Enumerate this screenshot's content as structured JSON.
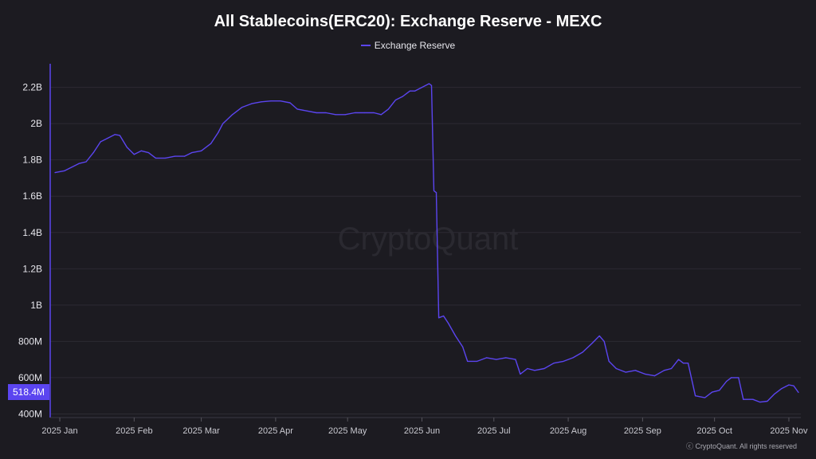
{
  "watermark": "CryptoQuant",
  "copyright": "ⓒ CryptoQuant. All rights reserved",
  "current_value_label": "518.4M",
  "colors": {
    "line": "#5b45f0",
    "badge": "#5b45f0",
    "background": "#1c1b21",
    "grid": "#2c2b33"
  },
  "chart_data": {
    "type": "line",
    "title": "All Stablecoins(ERC20): Exchange Reserve - MEXC",
    "xlabel": "",
    "ylabel": "",
    "legend": "top-center",
    "grid": true,
    "ylim": [
      380000000,
      2330000000
    ],
    "xlim": [
      "2024-12-28",
      "2025-11-06"
    ],
    "y_ticks": [
      400000000,
      600000000,
      800000000,
      1000000000,
      1200000000,
      1400000000,
      1600000000,
      1800000000,
      2000000000,
      2200000000
    ],
    "y_tick_labels": [
      "400M",
      "600M",
      "800M",
      "1B",
      "1.2B",
      "1.4B",
      "1.6B",
      "1.8B",
      "2B",
      "2.2B"
    ],
    "x_ticks": [
      "2025-01-01",
      "2025-02-01",
      "2025-03-01",
      "2025-04-01",
      "2025-05-01",
      "2025-06-01",
      "2025-07-01",
      "2025-08-01",
      "2025-09-01",
      "2025-10-01",
      "2025-11-01"
    ],
    "x_tick_labels": [
      "2025 Jan",
      "2025 Feb",
      "2025 Mar",
      "2025 Apr",
      "2025 May",
      "2025 Jun",
      "2025 Jul",
      "2025 Aug",
      "2025 Sep",
      "2025 Oct",
      "2025 Nov"
    ],
    "series": [
      {
        "name": "Exchange Reserve",
        "points": [
          [
            "2024-12-30",
            1730000000
          ],
          [
            "2025-01-03",
            1740000000
          ],
          [
            "2025-01-06",
            1760000000
          ],
          [
            "2025-01-09",
            1780000000
          ],
          [
            "2025-01-12",
            1790000000
          ],
          [
            "2025-01-15",
            1840000000
          ],
          [
            "2025-01-18",
            1900000000
          ],
          [
            "2025-01-21",
            1920000000
          ],
          [
            "2025-01-24",
            1940000000
          ],
          [
            "2025-01-26",
            1935000000
          ],
          [
            "2025-01-29",
            1870000000
          ],
          [
            "2025-02-01",
            1830000000
          ],
          [
            "2025-02-04",
            1850000000
          ],
          [
            "2025-02-07",
            1840000000
          ],
          [
            "2025-02-10",
            1810000000
          ],
          [
            "2025-02-14",
            1810000000
          ],
          [
            "2025-02-18",
            1820000000
          ],
          [
            "2025-02-22",
            1820000000
          ],
          [
            "2025-02-25",
            1840000000
          ],
          [
            "2025-03-01",
            1850000000
          ],
          [
            "2025-03-05",
            1890000000
          ],
          [
            "2025-03-08",
            1950000000
          ],
          [
            "2025-03-10",
            2000000000
          ],
          [
            "2025-03-14",
            2050000000
          ],
          [
            "2025-03-18",
            2090000000
          ],
          [
            "2025-03-22",
            2110000000
          ],
          [
            "2025-03-26",
            2120000000
          ],
          [
            "2025-03-30",
            2125000000
          ],
          [
            "2025-04-03",
            2125000000
          ],
          [
            "2025-04-07",
            2115000000
          ],
          [
            "2025-04-10",
            2080000000
          ],
          [
            "2025-04-14",
            2070000000
          ],
          [
            "2025-04-18",
            2060000000
          ],
          [
            "2025-04-22",
            2060000000
          ],
          [
            "2025-04-26",
            2050000000
          ],
          [
            "2025-04-30",
            2050000000
          ],
          [
            "2025-05-04",
            2060000000
          ],
          [
            "2025-05-08",
            2060000000
          ],
          [
            "2025-05-12",
            2060000000
          ],
          [
            "2025-05-15",
            2050000000
          ],
          [
            "2025-05-18",
            2080000000
          ],
          [
            "2025-05-21",
            2130000000
          ],
          [
            "2025-05-24",
            2150000000
          ],
          [
            "2025-05-27",
            2180000000
          ],
          [
            "2025-05-29",
            2180000000
          ],
          [
            "2025-06-01",
            2200000000
          ],
          [
            "2025-06-04",
            2220000000
          ],
          [
            "2025-06-05",
            2210000000
          ],
          [
            "2025-06-06",
            1630000000
          ],
          [
            "2025-06-07",
            1620000000
          ],
          [
            "2025-06-08",
            930000000
          ],
          [
            "2025-06-10",
            940000000
          ],
          [
            "2025-06-12",
            900000000
          ],
          [
            "2025-06-15",
            830000000
          ],
          [
            "2025-06-18",
            770000000
          ],
          [
            "2025-06-20",
            690000000
          ],
          [
            "2025-06-24",
            690000000
          ],
          [
            "2025-06-28",
            710000000
          ],
          [
            "2025-07-02",
            700000000
          ],
          [
            "2025-07-06",
            710000000
          ],
          [
            "2025-07-10",
            700000000
          ],
          [
            "2025-07-12",
            620000000
          ],
          [
            "2025-07-15",
            650000000
          ],
          [
            "2025-07-18",
            640000000
          ],
          [
            "2025-07-22",
            650000000
          ],
          [
            "2025-07-26",
            680000000
          ],
          [
            "2025-07-30",
            690000000
          ],
          [
            "2025-08-03",
            710000000
          ],
          [
            "2025-08-07",
            740000000
          ],
          [
            "2025-08-11",
            790000000
          ],
          [
            "2025-08-14",
            830000000
          ],
          [
            "2025-08-16",
            800000000
          ],
          [
            "2025-08-18",
            690000000
          ],
          [
            "2025-08-21",
            650000000
          ],
          [
            "2025-08-25",
            630000000
          ],
          [
            "2025-08-29",
            640000000
          ],
          [
            "2025-09-02",
            620000000
          ],
          [
            "2025-09-06",
            610000000
          ],
          [
            "2025-09-10",
            640000000
          ],
          [
            "2025-09-13",
            650000000
          ],
          [
            "2025-09-16",
            700000000
          ],
          [
            "2025-09-18",
            680000000
          ],
          [
            "2025-09-20",
            680000000
          ],
          [
            "2025-09-23",
            500000000
          ],
          [
            "2025-09-27",
            490000000
          ],
          [
            "2025-09-30",
            520000000
          ],
          [
            "2025-10-03",
            530000000
          ],
          [
            "2025-10-06",
            580000000
          ],
          [
            "2025-10-08",
            600000000
          ],
          [
            "2025-10-11",
            600000000
          ],
          [
            "2025-10-13",
            480000000
          ],
          [
            "2025-10-17",
            480000000
          ],
          [
            "2025-10-20",
            465000000
          ],
          [
            "2025-10-23",
            470000000
          ],
          [
            "2025-10-26",
            510000000
          ],
          [
            "2025-10-29",
            540000000
          ],
          [
            "2025-11-01",
            560000000
          ],
          [
            "2025-11-03",
            555000000
          ],
          [
            "2025-11-05",
            518400000
          ]
        ]
      }
    ]
  }
}
